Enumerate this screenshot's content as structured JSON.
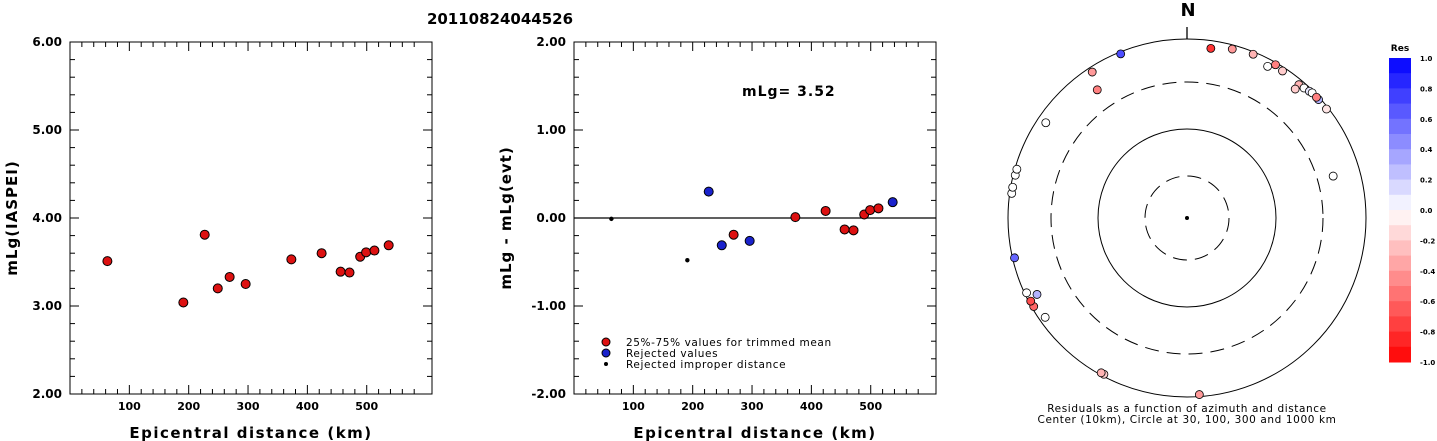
{
  "event_id": "20110824044526",
  "chart_data": [
    {
      "type": "scatter",
      "xlabel": "Epicentral distance (km)",
      "ylabel": "mLg(IASPEI)",
      "xlim": [
        0,
        610
      ],
      "ylim": [
        2.0,
        6.0
      ],
      "x_ticks": [
        "100",
        "200",
        "300",
        "400",
        "500"
      ],
      "y_ticks": [
        "2.00",
        "3.00",
        "4.00",
        "5.00",
        "6.00"
      ],
      "series": [
        {
          "color": "#dd1111",
          "points": [
            [
              63,
              3.51
            ],
            [
              191,
              3.04
            ],
            [
              227,
              3.81
            ],
            [
              249,
              3.2
            ],
            [
              269,
              3.33
            ],
            [
              296,
              3.25
            ],
            [
              373,
              3.53
            ],
            [
              424,
              3.6
            ],
            [
              456,
              3.39
            ],
            [
              471,
              3.38
            ],
            [
              489,
              3.56
            ],
            [
              499,
              3.61
            ],
            [
              513,
              3.63
            ],
            [
              537,
              3.69
            ]
          ]
        }
      ]
    },
    {
      "type": "scatter",
      "xlabel": "Epicentral distance (km)",
      "ylabel": "mLg - mLg(evt)",
      "annotation": "mLg= 3.52",
      "xlim": [
        0,
        610
      ],
      "ylim": [
        -2.0,
        2.0
      ],
      "x_ticks": [
        "100",
        "200",
        "300",
        "400",
        "500"
      ],
      "y_ticks": [
        "-2.00",
        "-1.00",
        "0.00",
        "1.00",
        "2.00"
      ],
      "zero_line": true,
      "legend": [
        {
          "label": "25%-75% values for trimmed mean",
          "color": "#dd1111"
        },
        {
          "label": "Rejected values",
          "color": "#1a22cc"
        },
        {
          "label": "Rejected improper distance",
          "color": "#000000"
        }
      ],
      "series": [
        {
          "name": "25%-75% values for trimmed mean",
          "color": "#dd1111",
          "points": [
            [
              269,
              -0.19
            ],
            [
              373,
              0.01
            ],
            [
              424,
              0.08
            ],
            [
              456,
              -0.13
            ],
            [
              471,
              -0.14
            ],
            [
              489,
              0.04
            ],
            [
              499,
              0.09
            ],
            [
              513,
              0.11
            ]
          ]
        },
        {
          "name": "Rejected values",
          "color": "#1a22cc",
          "points": [
            [
              227,
              0.3
            ],
            [
              249,
              -0.31
            ],
            [
              296,
              -0.26
            ],
            [
              537,
              0.18
            ]
          ]
        },
        {
          "name": "Rejected improper distance",
          "color": "#000000",
          "points": [
            [
              63,
              -0.01
            ],
            [
              191,
              -0.48
            ]
          ]
        }
      ]
    },
    {
      "type": "scatter",
      "north_label": "N",
      "caption_line1": "Residuals as a function of azimuth and distance",
      "caption_line2": "Center (10km), Circle at 30, 100, 300 and 1000 km",
      "rings_km": [
        30,
        100,
        300,
        1000
      ],
      "stations": [
        {
          "az": 8,
          "res": -0.8
        },
        {
          "az": 15,
          "res": -0.4
        },
        {
          "az": 22,
          "res": -0.3
        },
        {
          "az": 30,
          "res": -0.5
        },
        {
          "az": 28,
          "res": 0.0
        },
        {
          "az": 33,
          "res": -0.2
        },
        {
          "az": 40,
          "res": -0.3
        },
        {
          "az": 42,
          "res": 0.0
        },
        {
          "az": 44,
          "res": 0.1
        },
        {
          "az": 45,
          "res": 0.0
        },
        {
          "az": 48,
          "res": 0.3
        },
        {
          "az": 52,
          "res": -0.1
        },
        {
          "az": 40,
          "res": -0.2
        },
        {
          "az": 47,
          "res": -0.5
        },
        {
          "az": 74,
          "res": 0.0
        },
        {
          "az": 176,
          "res": -0.4
        },
        {
          "az": 208,
          "res": -0.2
        },
        {
          "az": 209,
          "res": -0.3
        },
        {
          "az": 235,
          "res": 0.0
        },
        {
          "az": 240,
          "res": -0.6
        },
        {
          "az": 242,
          "res": -0.7
        },
        {
          "az": 243,
          "res": 0.3
        },
        {
          "az": 245,
          "res": 0.0
        },
        {
          "az": 257,
          "res": 0.6
        },
        {
          "az": 278,
          "res": 0.0
        },
        {
          "az": 280,
          "res": 0.0
        },
        {
          "az": 284,
          "res": 0.0
        },
        {
          "az": 286,
          "res": 0.0
        },
        {
          "az": 304,
          "res": 0.0
        },
        {
          "az": 327,
          "res": -0.4
        },
        {
          "az": 338,
          "res": 0.7
        },
        {
          "az": 325,
          "res": -0.5
        }
      ],
      "station_dist_km": [
        820,
        900,
        940,
        960,
        830,
        910,
        880,
        900,
        930,
        960,
        990,
        1000,
        760,
        1000,
        500,
        960,
        1000,
        980,
        860,
        1000,
        1000,
        760,
        1000,
        1000,
        960,
        1000,
        980,
        1000,
        800,
        880,
        1000,
        560
      ],
      "colorbar": {
        "title": "Res",
        "labels": [
          "1.0",
          "0.8",
          "0.6",
          "0.4",
          "0.2",
          "0.0",
          "-0.2",
          "-0.4",
          "-0.6",
          "-0.8",
          "-1.0"
        ]
      }
    }
  ]
}
